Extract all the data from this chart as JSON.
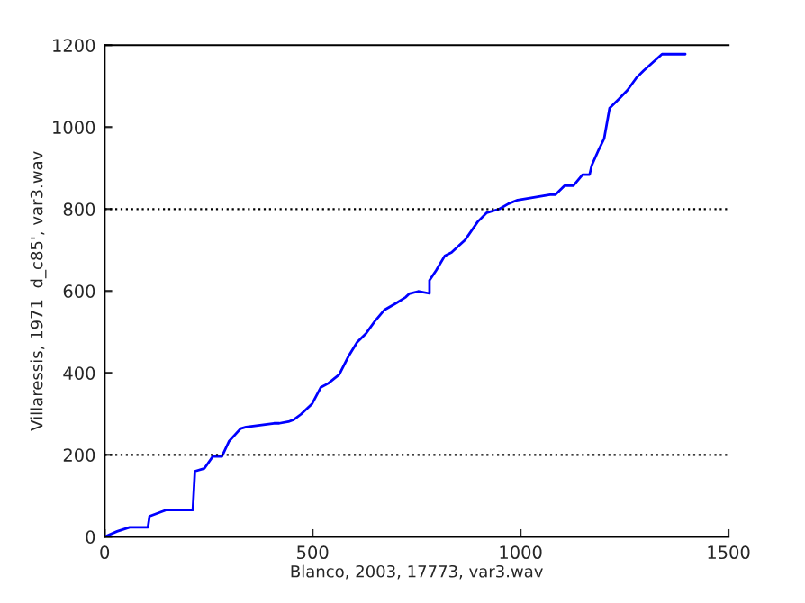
{
  "chart_data": {
    "type": "line",
    "xlabel": "Blanco, 2003, 17773, var3.wav",
    "ylabel": "Villaressis, 1971  d_c85', var3.wav",
    "series": [
      {
        "color": "#0000ff",
        "x": [
          0,
          30,
          60,
          87,
          104,
          108,
          147,
          212,
          217,
          240,
          260,
          282,
          299,
          327,
          340,
          407,
          420,
          442,
          455,
          472,
          499,
          520,
          537,
          564,
          586,
          607,
          629,
          651,
          673,
          702,
          724,
          732,
          754,
          781,
          781,
          797,
          818,
          834,
          867,
          897,
          919,
          949,
          971,
          993,
          1071,
          1084,
          1106,
          1127,
          1149,
          1166,
          1171,
          1188,
          1201,
          1214,
          1236,
          1257,
          1279,
          1296,
          1340,
          1396
        ],
        "values": [
          0,
          13,
          23,
          23,
          23,
          50,
          65,
          65,
          160,
          167,
          196,
          196,
          233,
          264,
          268,
          277,
          277,
          281,
          286,
          299,
          325,
          365,
          374,
          396,
          440,
          475,
          497,
          528,
          554,
          571,
          585,
          593,
          599,
          594,
          626,
          650,
          686,
          694,
          725,
          769,
          791,
          800,
          813,
          822,
          835,
          835,
          857,
          857,
          884,
          884,
          906,
          945,
          972,
          1046,
          1068,
          1090,
          1121,
          1138,
          1178,
          1178
        ]
      }
    ],
    "xlim": [
      0,
      1500
    ],
    "ylim": [
      0,
      1200
    ],
    "xticks": [
      0,
      500,
      1000,
      1500
    ],
    "yticks": [
      0,
      200,
      400,
      600,
      800,
      1000,
      1200
    ],
    "ref_lines": [
      {
        "axis": "y",
        "value": 200,
        "line_style": "dotted",
        "color": "#000000"
      },
      {
        "axis": "y",
        "value": 800,
        "line_style": "dotted",
        "color": "#000000"
      }
    ],
    "grid": false,
    "legend": false,
    "marker": "none",
    "line_style": "solid"
  }
}
